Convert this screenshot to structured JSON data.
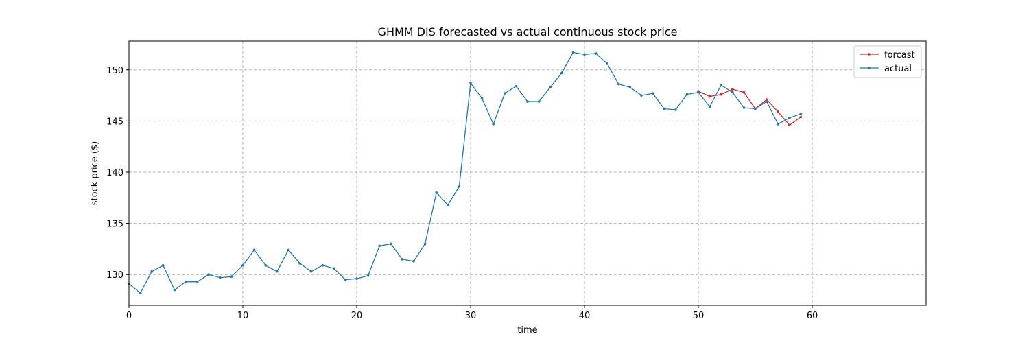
{
  "chart_data": {
    "type": "line",
    "title": "GHMM DIS forecasted vs actual continuous stock price",
    "xlabel": "time",
    "ylabel": "stock price ($)",
    "xlim": [
      0,
      70
    ],
    "ylim": [
      127,
      152.8
    ],
    "xticks": [
      0,
      10,
      20,
      30,
      40,
      50,
      60
    ],
    "yticks": [
      130,
      135,
      140,
      145,
      150
    ],
    "grid": true,
    "legend_position": "top-right",
    "series": [
      {
        "name": "forcast",
        "color": "#d62728",
        "x": [
          50,
          51,
          52,
          53,
          54,
          55,
          56,
          57,
          58,
          59
        ],
        "values": [
          147.9,
          147.4,
          147.6,
          148.1,
          147.8,
          146.2,
          147.1,
          145.9,
          144.6,
          145.4
        ]
      },
      {
        "name": "actual",
        "color": "#1f77b4",
        "x": [
          0,
          1,
          2,
          3,
          4,
          5,
          6,
          7,
          8,
          9,
          10,
          11,
          12,
          13,
          14,
          15,
          16,
          17,
          18,
          19,
          20,
          21,
          22,
          23,
          24,
          25,
          26,
          27,
          28,
          29,
          30,
          31,
          32,
          33,
          34,
          35,
          36,
          37,
          38,
          39,
          40,
          41,
          42,
          43,
          44,
          45,
          46,
          47,
          48,
          49,
          50,
          51,
          52,
          53,
          54,
          55,
          56,
          57,
          58,
          59
        ],
        "values": [
          129.1,
          128.2,
          130.3,
          130.9,
          128.5,
          129.3,
          129.3,
          130.0,
          129.7,
          129.8,
          130.9,
          132.4,
          130.9,
          130.3,
          132.4,
          131.1,
          130.3,
          130.9,
          130.6,
          129.5,
          129.6,
          129.9,
          132.8,
          133.0,
          131.5,
          131.3,
          133.0,
          138.0,
          136.8,
          138.6,
          148.7,
          147.2,
          144.7,
          147.7,
          148.4,
          146.9,
          146.9,
          148.3,
          149.7,
          151.7,
          151.5,
          151.6,
          150.6,
          148.6,
          148.3,
          147.5,
          147.7,
          146.2,
          146.1,
          147.6,
          147.8,
          146.4,
          148.5,
          147.8,
          146.3,
          146.2,
          146.9,
          144.7,
          145.3,
          145.7
        ]
      }
    ]
  }
}
